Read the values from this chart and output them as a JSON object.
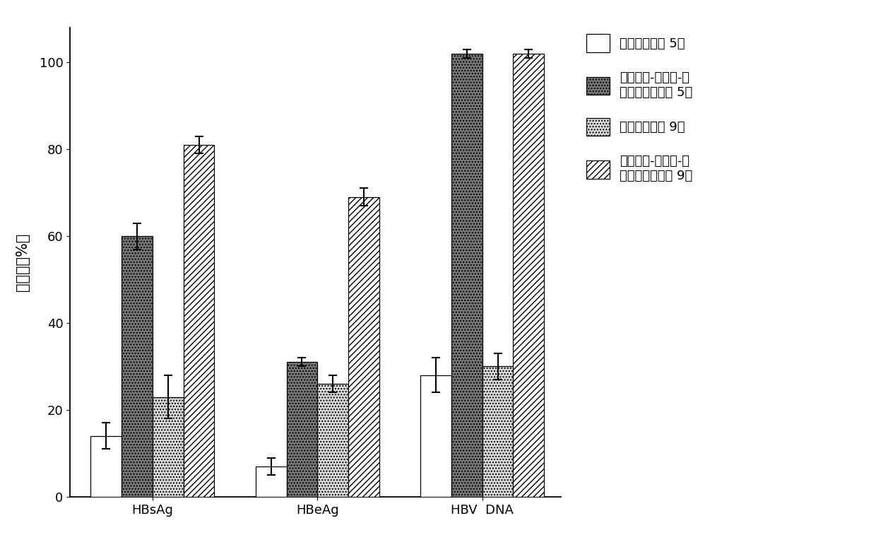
{
  "groups": [
    "HBsAg",
    "HBeAg",
    "HBV  DNA"
  ],
  "series": [
    {
      "label": "阿昔洛韦溶液 5天",
      "values": [
        14,
        7,
        28
      ],
      "errors": [
        3,
        2,
        4
      ],
      "hatch": "",
      "fc": "white",
      "ec": "black"
    },
    {
      "label": "阿昔洛韦-壳聚糖-硬\n脂酸嫁接物胶束 5天",
      "values": [
        60,
        31,
        102
      ],
      "errors": [
        3,
        1,
        1
      ],
      "hatch": "....",
      "fc": "#666666",
      "ec": "black"
    },
    {
      "label": "阿昔洛韦溶液 9天",
      "values": [
        23,
        26,
        30
      ],
      "errors": [
        5,
        2,
        3
      ],
      "hatch": "....",
      "fc": "#dddddd",
      "ec": "black"
    },
    {
      "label": "阿昔洛韦-壳聚糖-硬\n脂酸嫁接物胶束 9天",
      "values": [
        81,
        69,
        102
      ],
      "errors": [
        2,
        2,
        1
      ],
      "hatch": "////",
      "fc": "white",
      "ec": "black"
    }
  ],
  "legend_labels": [
    "阿昔洛韦溶液 5天",
    "阿昔洛韦-壳聚糖-硬\n脂酸嫁接物胶束 5天",
    "阿昔洛韦溶液 9天",
    "阿昔洛韦-壳聚糖-硬\n脂酸嫁接物胶束 9天"
  ],
  "ylabel": "抑制率（%）",
  "ylim": [
    0,
    108
  ],
  "yticks": [
    0,
    20,
    40,
    60,
    80,
    100
  ],
  "bar_width": 0.15,
  "group_centers": [
    0.35,
    1.15,
    1.95
  ],
  "background_color": "white",
  "legend_fontsize": 13,
  "axis_fontsize": 15,
  "tick_fontsize": 13
}
